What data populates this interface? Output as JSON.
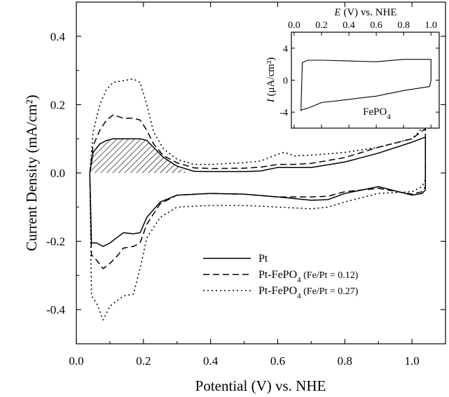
{
  "chart_data": [
    {
      "type": "line",
      "xlabel": "Potential (V) vs. NHE",
      "ylabel": "Current Density (mA/cm²)",
      "xlim": [
        0.0,
        1.1
      ],
      "ylim": [
        -0.5,
        0.5
      ],
      "x_ticks": [
        "0.0",
        "0.2",
        "0.4",
        "0.6",
        "0.8",
        "1.0"
      ],
      "y_ticks": [
        "-0.4",
        "-0.2",
        "0.0",
        "0.2",
        "0.4"
      ],
      "legend": {
        "placement": "lower-center",
        "entries": [
          {
            "label": "Pt",
            "style": "solid"
          },
          {
            "label": "Pt-FePO",
            "sub": "4",
            "suffix": " (Fe/Pt = 0.12)",
            "style": "dashed"
          },
          {
            "label": "Pt-FePO",
            "sub": "4",
            "suffix": " (Fe/Pt = 0.27)",
            "style": "dotted"
          }
        ]
      },
      "annotations": [
        "hatched area: hydrogen desorption charge of Pt, 0.04–0.33 V"
      ],
      "series": [
        {
          "name": "Pt",
          "style": "solid",
          "x": [
            0.04,
            0.05,
            0.07,
            0.09,
            0.11,
            0.13,
            0.16,
            0.19,
            0.21,
            0.23,
            0.26,
            0.3,
            0.35,
            0.4,
            0.5,
            0.55,
            0.6,
            0.65,
            0.7,
            0.8,
            0.9,
            1.0,
            1.04,
            1.04,
            1.03,
            1.0,
            0.9,
            0.8,
            0.75,
            0.7,
            0.6,
            0.5,
            0.4,
            0.3,
            0.25,
            0.21,
            0.19,
            0.17,
            0.14,
            0.12,
            0.1,
            0.08,
            0.06,
            0.045,
            0.04
          ],
          "y": [
            0.0,
            0.06,
            0.085,
            0.095,
            0.1,
            0.1,
            0.1,
            0.1,
            0.095,
            0.075,
            0.045,
            0.02,
            0.005,
            0.004,
            0.004,
            0.006,
            0.016,
            0.016,
            0.016,
            0.032,
            0.058,
            0.09,
            0.105,
            -0.05,
            -0.06,
            -0.065,
            -0.04,
            -0.06,
            -0.078,
            -0.08,
            -0.07,
            -0.062,
            -0.06,
            -0.065,
            -0.085,
            -0.13,
            -0.175,
            -0.178,
            -0.175,
            -0.19,
            -0.205,
            -0.215,
            -0.205,
            -0.205,
            0.0
          ]
        },
        {
          "name": "Pt-FePO4 (Fe/Pt = 0.12)",
          "style": "dashed",
          "x": [
            0.04,
            0.05,
            0.07,
            0.09,
            0.11,
            0.14,
            0.17,
            0.19,
            0.21,
            0.23,
            0.26,
            0.3,
            0.35,
            0.4,
            0.5,
            0.55,
            0.6,
            0.65,
            0.7,
            0.8,
            0.9,
            1.0,
            1.04,
            1.04,
            1.03,
            1.0,
            0.9,
            0.8,
            0.75,
            0.7,
            0.6,
            0.5,
            0.4,
            0.3,
            0.25,
            0.21,
            0.19,
            0.17,
            0.14,
            0.12,
            0.1,
            0.08,
            0.06,
            0.045,
            0.04
          ],
          "y": [
            0.0,
            0.08,
            0.125,
            0.155,
            0.17,
            0.16,
            0.16,
            0.155,
            0.125,
            0.085,
            0.05,
            0.03,
            0.015,
            0.013,
            0.014,
            0.017,
            0.025,
            0.025,
            0.028,
            0.045,
            0.075,
            0.1,
            0.13,
            -0.04,
            -0.055,
            -0.062,
            -0.045,
            -0.055,
            -0.068,
            -0.07,
            -0.07,
            -0.062,
            -0.06,
            -0.065,
            -0.09,
            -0.15,
            -0.205,
            -0.215,
            -0.22,
            -0.245,
            -0.265,
            -0.28,
            -0.255,
            -0.24,
            0.0
          ]
        },
        {
          "name": "Pt-FePO4 (Fe/Pt = 0.27)",
          "style": "dotted",
          "x": [
            0.04,
            0.05,
            0.07,
            0.09,
            0.11,
            0.14,
            0.17,
            0.19,
            0.21,
            0.23,
            0.26,
            0.3,
            0.35,
            0.4,
            0.5,
            0.55,
            0.6,
            0.62,
            0.65,
            0.7,
            0.8,
            0.9,
            1.0,
            1.04,
            1.04,
            1.03,
            1.0,
            0.9,
            0.8,
            0.75,
            0.7,
            0.6,
            0.5,
            0.4,
            0.3,
            0.25,
            0.21,
            0.19,
            0.17,
            0.14,
            0.12,
            0.1,
            0.08,
            0.06,
            0.045,
            0.04
          ],
          "y": [
            0.0,
            0.12,
            0.2,
            0.245,
            0.265,
            0.27,
            0.275,
            0.265,
            0.2,
            0.12,
            0.07,
            0.04,
            0.025,
            0.025,
            0.03,
            0.035,
            0.055,
            0.06,
            0.05,
            0.052,
            0.06,
            0.075,
            0.1,
            0.14,
            -0.02,
            -0.04,
            -0.055,
            -0.06,
            -0.085,
            -0.1,
            -0.105,
            -0.1,
            -0.095,
            -0.095,
            -0.1,
            -0.13,
            -0.19,
            -0.28,
            -0.355,
            -0.36,
            -0.375,
            -0.39,
            -0.43,
            -0.38,
            -0.36,
            0.0
          ]
        }
      ]
    },
    {
      "type": "line",
      "title": "FePO",
      "title_sub": "4",
      "xlabel_var": "E",
      "xlabel": " (V) vs. NHE",
      "ylabel_var": "I",
      "ylabel": " (μA/cm²)",
      "xlim": [
        -0.02,
        1.06
      ],
      "ylim": [
        -6,
        6
      ],
      "x_ticks": [
        "0.0",
        "0.2",
        "0.4",
        "0.6",
        "0.8",
        "1.0"
      ],
      "y_ticks": [
        "-4",
        "0",
        "4"
      ],
      "series": [
        {
          "style": "solid",
          "x": [
            0.05,
            0.06,
            0.1,
            0.2,
            0.4,
            0.6,
            0.8,
            0.95,
            1.0,
            1.0,
            0.99,
            0.95,
            0.8,
            0.6,
            0.4,
            0.2,
            0.1,
            0.06,
            0.05,
            0.05
          ],
          "y": [
            -3.6,
            2.2,
            2.5,
            2.5,
            2.4,
            2.3,
            2.6,
            2.6,
            2.6,
            0.0,
            -0.8,
            -0.9,
            -1.3,
            -2.0,
            -2.4,
            -2.8,
            -3.5,
            -3.7,
            -3.8,
            -3.6
          ]
        }
      ]
    }
  ]
}
